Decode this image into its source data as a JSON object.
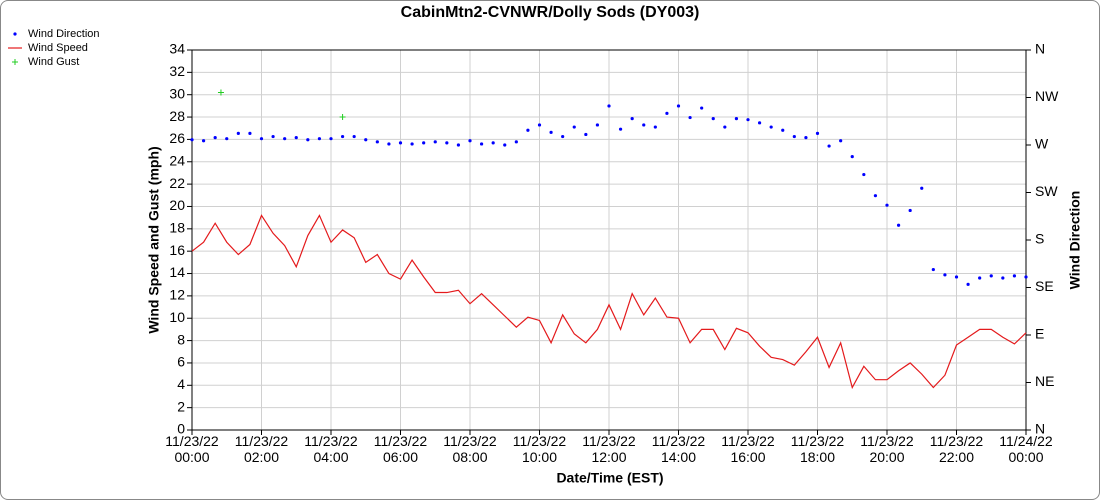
{
  "chart_data": {
    "type": "line",
    "title": "CabinMtn2-CVNWR/Dolly Sods (DY003)",
    "xlabel": "Date/Time (EST)",
    "ylabel": "Wind Speed and Gust (mph)",
    "y2label": "Wind Direction",
    "x": [
      "11/23/22 00:00",
      "11/23/22 00:20",
      "11/23/22 00:40",
      "11/23/22 01:00",
      "11/23/22 01:20",
      "11/23/22 01:40",
      "11/23/22 02:00",
      "11/23/22 02:20",
      "11/23/22 02:40",
      "11/23/22 03:00",
      "11/23/22 03:20",
      "11/23/22 03:40",
      "11/23/22 04:00",
      "11/23/22 04:20",
      "11/23/22 04:40",
      "11/23/22 05:00",
      "11/23/22 05:20",
      "11/23/22 05:40",
      "11/23/22 06:00",
      "11/23/22 06:20",
      "11/23/22 06:40",
      "11/23/22 07:00",
      "11/23/22 07:20",
      "11/23/22 07:40",
      "11/23/22 08:00",
      "11/23/22 08:20",
      "11/23/22 08:40",
      "11/23/22 09:00",
      "11/23/22 09:20",
      "11/23/22 09:40",
      "11/23/22 10:00",
      "11/23/22 10:20",
      "11/23/22 10:40",
      "11/23/22 11:00",
      "11/23/22 11:20",
      "11/23/22 11:40",
      "11/23/22 12:00",
      "11/23/22 12:20",
      "11/23/22 12:40",
      "11/23/22 13:00",
      "11/23/22 13:20",
      "11/23/22 13:40",
      "11/23/22 14:00",
      "11/23/22 14:20",
      "11/23/22 14:40",
      "11/23/22 15:00",
      "11/23/22 15:20",
      "11/23/22 15:40",
      "11/23/22 16:00",
      "11/23/22 16:20",
      "11/23/22 16:40",
      "11/23/22 17:00",
      "11/23/22 17:20",
      "11/23/22 17:40",
      "11/23/22 18:00",
      "11/23/22 18:20",
      "11/23/22 18:40",
      "11/23/22 19:00",
      "11/23/22 19:20",
      "11/23/22 19:40",
      "11/23/22 20:00",
      "11/23/22 20:20",
      "11/23/22 20:40",
      "11/23/22 21:00",
      "11/23/22 21:20",
      "11/23/22 21:40",
      "11/23/22 22:00",
      "11/23/22 22:20",
      "11/23/22 22:40",
      "11/23/22 23:00",
      "11/23/22 23:20",
      "11/23/22 23:40",
      "11/24/22 00:00"
    ],
    "series": [
      {
        "name": "Wind Direction",
        "color": "#0000ff",
        "marker": "dot",
        "axis": "y2",
        "values": [
          275,
          274,
          277,
          276,
          281,
          281,
          276,
          278,
          276,
          277,
          275,
          276,
          276,
          278,
          278,
          275,
          273,
          271,
          272,
          271,
          272,
          273,
          272,
          270,
          274,
          271,
          272,
          270,
          273,
          284,
          289,
          282,
          278,
          287,
          280,
          289,
          307,
          285,
          295,
          289,
          287,
          300,
          307,
          296,
          305,
          295,
          287,
          295,
          294,
          291,
          287,
          284,
          278,
          277,
          281,
          269,
          274,
          259,
          242,
          222,
          213,
          194,
          208,
          229,
          152,
          147,
          145,
          138,
          144,
          146,
          144,
          146,
          145
        ]
      },
      {
        "name": "Wind Speed",
        "color": "#e41a1c",
        "marker": "line",
        "values": [
          16.0,
          16.8,
          18.5,
          16.8,
          15.7,
          16.6,
          19.2,
          17.6,
          16.5,
          14.6,
          17.4,
          19.2,
          16.8,
          17.9,
          17.2,
          15.0,
          15.7,
          14.0,
          13.5,
          15.2,
          13.7,
          12.3,
          12.3,
          12.5,
          11.3,
          12.2,
          11.2,
          10.2,
          9.2,
          10.1,
          9.8,
          7.8,
          10.3,
          8.6,
          7.8,
          9.0,
          11.2,
          9.0,
          12.2,
          10.3,
          11.8,
          10.1,
          10.0,
          7.8,
          9.0,
          9.0,
          7.2,
          9.1,
          8.7,
          7.5,
          6.5,
          6.3,
          5.8,
          7.0,
          8.3,
          5.6,
          7.8,
          3.8,
          5.7,
          4.5,
          4.5,
          5.3,
          6.0,
          5.0,
          3.8,
          4.9,
          7.6,
          8.3,
          9.0,
          9.0,
          8.3,
          7.7,
          8.7
        ]
      },
      {
        "name": "Wind Gust",
        "color": "#22cc22",
        "marker": "plus",
        "x": [
          "11/23/22 00:50",
          "11/23/22 04:20"
        ],
        "values": [
          30.2,
          28.0
        ]
      }
    ],
    "xlim": [
      "11/23/22 00:00",
      "11/24/22 00:00"
    ],
    "xticks": [
      {
        "value": "11/23/22 00:00",
        "label": "11/23/22\n00:00"
      },
      {
        "value": "11/23/22 02:00",
        "label": "11/23/22\n02:00"
      },
      {
        "value": "11/23/22 04:00",
        "label": "11/23/22\n04:00"
      },
      {
        "value": "11/23/22 06:00",
        "label": "11/23/22\n06:00"
      },
      {
        "value": "11/23/22 08:00",
        "label": "11/23/22\n08:00"
      },
      {
        "value": "11/23/22 10:00",
        "label": "11/23/22\n10:00"
      },
      {
        "value": "11/23/22 12:00",
        "label": "11/23/22\n12:00"
      },
      {
        "value": "11/23/22 14:00",
        "label": "11/23/22\n14:00"
      },
      {
        "value": "11/23/22 16:00",
        "label": "11/23/22\n16:00"
      },
      {
        "value": "11/23/22 18:00",
        "label": "11/23/22\n18:00"
      },
      {
        "value": "11/23/22 20:00",
        "label": "11/23/22\n20:00"
      },
      {
        "value": "11/23/22 22:00",
        "label": "11/23/22\n22:00"
      },
      {
        "value": "11/24/22 00:00",
        "label": "11/24/22\n00:00"
      }
    ],
    "ylim": [
      0,
      34
    ],
    "yticks": [
      0,
      2,
      4,
      6,
      8,
      10,
      12,
      14,
      16,
      18,
      20,
      22,
      24,
      26,
      28,
      30,
      32,
      34
    ],
    "y2lim": [
      0,
      360
    ],
    "y2ticks": [
      {
        "value": 0,
        "label": "N"
      },
      {
        "value": 45,
        "label": "NE"
      },
      {
        "value": 90,
        "label": "E"
      },
      {
        "value": 135,
        "label": "SE"
      },
      {
        "value": 180,
        "label": "S"
      },
      {
        "value": 225,
        "label": "SW"
      },
      {
        "value": 270,
        "label": "W"
      },
      {
        "value": 315,
        "label": "NW"
      },
      {
        "value": 360,
        "label": "N"
      }
    ],
    "grid": true,
    "legend": "top-left"
  }
}
